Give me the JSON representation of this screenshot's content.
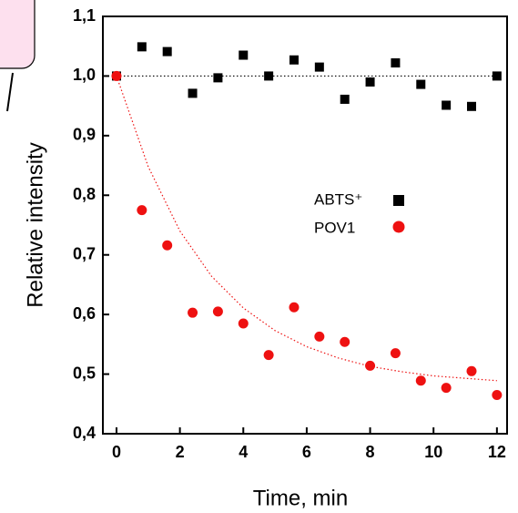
{
  "chart_data": {
    "type": "scatter",
    "x_label": "Time, min",
    "y_label": "Relative intensity",
    "xlim": [
      -0.43,
      12.32
    ],
    "ylim": [
      0.4,
      1.1
    ],
    "xticks": [
      0,
      2,
      4,
      6,
      8,
      10,
      12
    ],
    "yticks": [
      {
        "value": 0.4,
        "label": "0,4"
      },
      {
        "value": 0.5,
        "label": "0,5"
      },
      {
        "value": 0.6,
        "label": "0,6"
      },
      {
        "value": 0.7,
        "label": "0,7"
      },
      {
        "value": 0.8,
        "label": "0,8"
      },
      {
        "value": 0.9,
        "label": "0,9"
      },
      {
        "value": 1.0,
        "label": "1,0"
      },
      {
        "value": 1.1,
        "label": "1,1"
      }
    ],
    "x": [
      0,
      0.8,
      1.6,
      2.4,
      3.2,
      4.0,
      4.8,
      5.6,
      6.4,
      7.2,
      8.0,
      8.8,
      9.6,
      10.4,
      11.2,
      12.0
    ],
    "series": [
      {
        "name": "ABTS⁺",
        "color": "#000000",
        "marker": "square",
        "values": [
          1.0,
          1.049,
          1.041,
          0.971,
          0.997,
          1.035,
          1.0,
          1.027,
          1.015,
          0.961,
          0.99,
          1.022,
          0.986,
          0.951,
          0.949,
          1.0
        ]
      },
      {
        "name": "POV1",
        "color": "#ee1111",
        "marker": "circle",
        "values": [
          1.0,
          0.775,
          0.716,
          0.603,
          0.605,
          0.585,
          0.532,
          0.612,
          0.563,
          0.554,
          0.514,
          0.535,
          0.489,
          0.477,
          0.505,
          0.465
        ]
      }
    ],
    "lines": [
      {
        "color": "#000000",
        "x": [
          0,
          12
        ],
        "values": [
          1.0,
          1.0
        ]
      },
      {
        "color": "#ee1111",
        "x": [
          0,
          1,
          2,
          3,
          4,
          5,
          6,
          7,
          8,
          9,
          10,
          11,
          12
        ],
        "values": [
          1.0,
          0.848,
          0.74,
          0.664,
          0.611,
          0.573,
          0.546,
          0.527,
          0.513,
          0.504,
          0.497,
          0.493,
          0.489
        ]
      }
    ]
  }
}
